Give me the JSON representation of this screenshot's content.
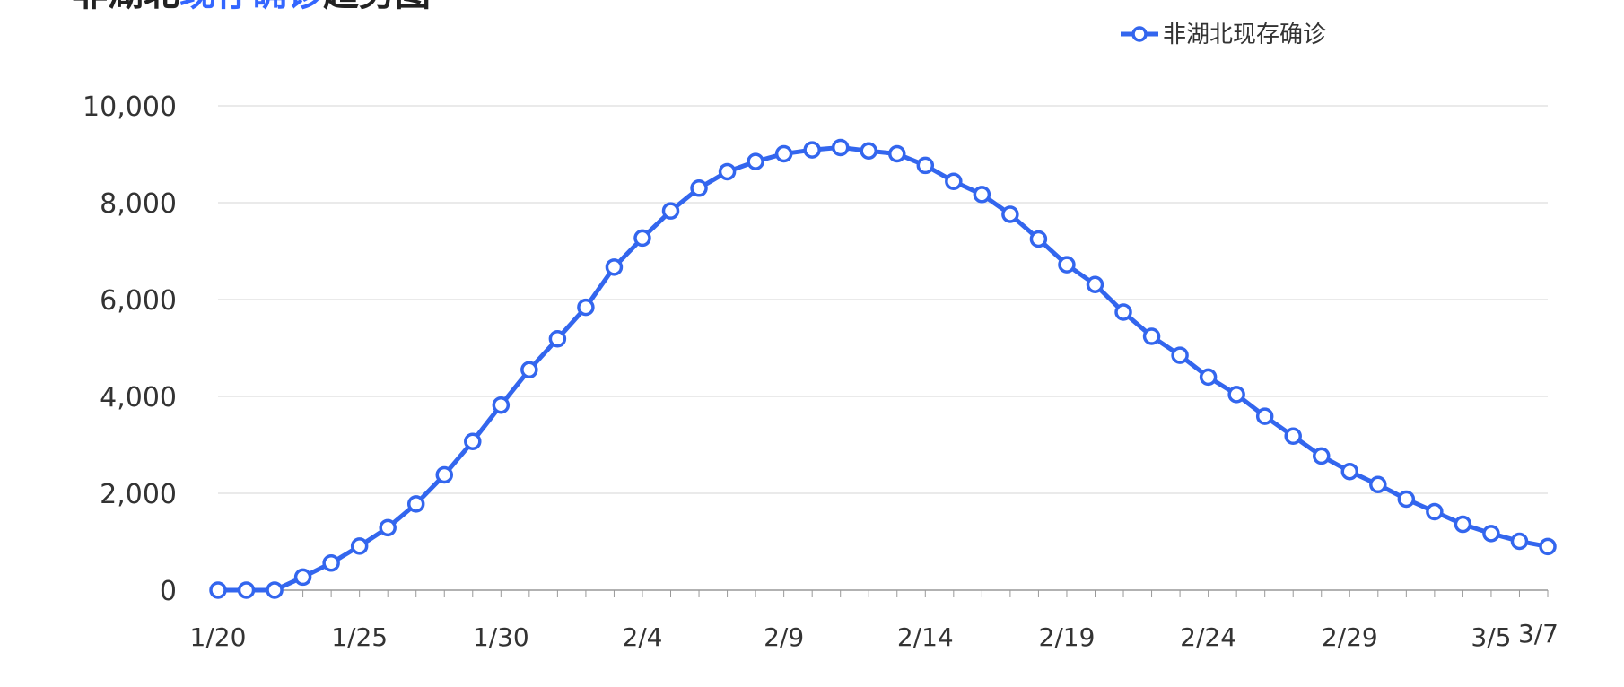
{
  "chart_data": {
    "type": "line",
    "title_parts": [
      {
        "text": "非湖北",
        "color": "#222222"
      },
      {
        "text": "现存确诊",
        "color": "#3366ff"
      },
      {
        "text": "趋势图",
        "color": "#222222"
      }
    ],
    "legend": "非湖北现存确诊",
    "legend_position": "top-right",
    "grid": true,
    "ylim": [
      0,
      10000
    ],
    "y_ticks": [
      "0",
      "2,000",
      "4,000",
      "6,000",
      "8,000",
      "10,000"
    ],
    "y_tick_values": [
      0,
      2000,
      4000,
      6000,
      8000,
      10000
    ],
    "x_tick_labels": [
      "1/20",
      "1/25",
      "1/30",
      "2/4",
      "2/9",
      "2/14",
      "2/19",
      "2/24",
      "2/29",
      "3/5",
      "3/7"
    ],
    "x_tick_indices": [
      0,
      5,
      10,
      15,
      20,
      25,
      30,
      35,
      40,
      45,
      47
    ],
    "color": "#3366ee",
    "series": [
      {
        "name": "非湖北现存确诊",
        "x": [
          "1/20",
          "1/21",
          "1/22",
          "1/23",
          "1/24",
          "1/25",
          "1/26",
          "1/27",
          "1/28",
          "1/29",
          "1/30",
          "1/31",
          "2/1",
          "2/2",
          "2/3",
          "2/4",
          "2/5",
          "2/6",
          "2/7",
          "2/8",
          "2/9",
          "2/10",
          "2/11",
          "2/12",
          "2/13",
          "2/14",
          "2/15",
          "2/16",
          "2/17",
          "2/18",
          "2/19",
          "2/20",
          "2/21",
          "2/22",
          "2/23",
          "2/24",
          "2/25",
          "2/26",
          "2/27",
          "2/28",
          "2/29",
          "3/1",
          "3/2",
          "3/3",
          "3/4",
          "3/5",
          "3/6",
          "3/7"
        ],
        "values": [
          0,
          0,
          0,
          270,
          560,
          910,
          1290,
          1780,
          2380,
          3070,
          3820,
          4550,
          5190,
          5840,
          6670,
          7270,
          7830,
          8300,
          8640,
          8850,
          9010,
          9090,
          9140,
          9070,
          9010,
          8770,
          8440,
          8170,
          7760,
          7250,
          6720,
          6310,
          5740,
          5240,
          4850,
          4400,
          4040,
          3590,
          3180,
          2770,
          2450,
          2180,
          1880,
          1620,
          1360,
          1170,
          1010,
          900
        ]
      }
    ]
  }
}
